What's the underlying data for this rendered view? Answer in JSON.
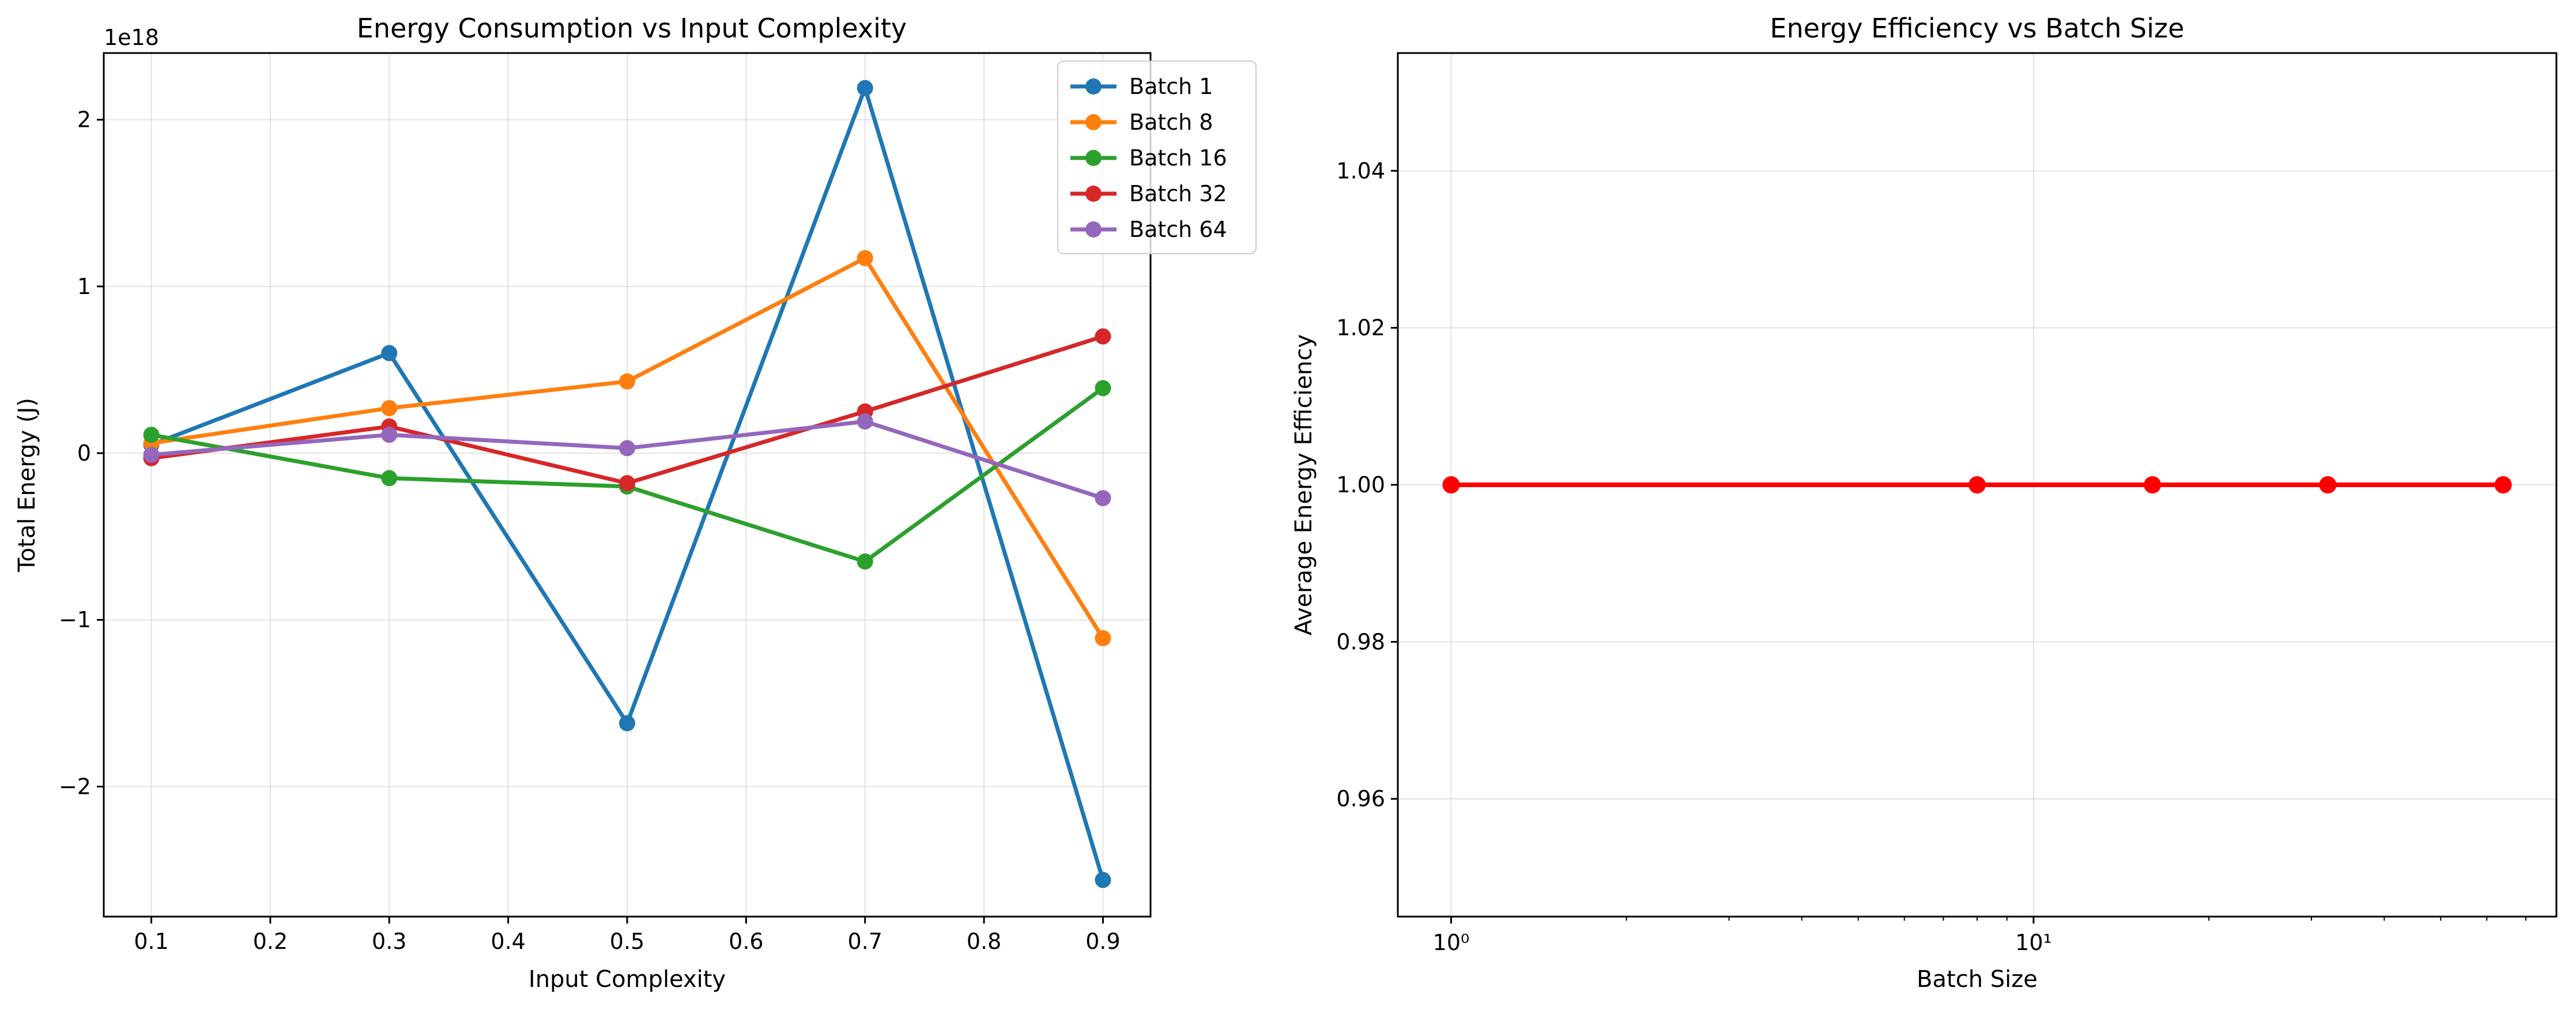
{
  "chart_data": [
    {
      "type": "line",
      "title": "Energy Consumption vs Input Complexity",
      "xlabel": "Input Complexity",
      "ylabel": "Total Energy (J)",
      "y_offset_label": "1e18",
      "y_scale_exponent": 18,
      "x": [
        0.1,
        0.3,
        0.5,
        0.7,
        0.9
      ],
      "xlim": [
        0.06,
        0.94
      ],
      "ylim": [
        -2.78,
        2.4
      ],
      "x_ticks": [
        0.1,
        0.2,
        0.3,
        0.4,
        0.5,
        0.6,
        0.7,
        0.8,
        0.9
      ],
      "y_ticks": [
        -2,
        -1,
        0,
        1,
        2
      ],
      "grid": true,
      "legend_position": "top-right",
      "series": [
        {
          "name": "Batch 1",
          "color": "#1f77b4",
          "values": [
            0.05,
            0.6,
            -1.62,
            2.19,
            -2.56
          ]
        },
        {
          "name": "Batch 8",
          "color": "#ff7f0e",
          "values": [
            0.06,
            0.27,
            0.43,
            1.17,
            -1.11
          ]
        },
        {
          "name": "Batch 16",
          "color": "#2ca02c",
          "values": [
            0.11,
            -0.15,
            -0.2,
            -0.65,
            0.39
          ]
        },
        {
          "name": "Batch 32",
          "color": "#d62728",
          "values": [
            -0.03,
            0.16,
            -0.18,
            0.25,
            0.7
          ]
        },
        {
          "name": "Batch 64",
          "color": "#9467bd",
          "values": [
            -0.01,
            0.11,
            0.03,
            0.19,
            -0.27
          ]
        }
      ]
    },
    {
      "type": "line",
      "title": "Energy Efficiency vs Batch Size",
      "xlabel": "Batch Size",
      "ylabel": "Average Energy Efficiency",
      "x_scale": "log",
      "x": [
        1,
        8,
        16,
        32,
        64
      ],
      "xlim": [
        0.81,
        79
      ],
      "ylim": [
        0.945,
        1.055
      ],
      "x_tick_labels": [
        "10⁰",
        "10¹"
      ],
      "y_ticks": [
        0.96,
        0.98,
        1.0,
        1.02,
        1.04
      ],
      "grid": true,
      "series": [
        {
          "color": "#ff0000",
          "values": [
            1.0,
            1.0,
            1.0,
            1.0,
            1.0
          ]
        }
      ]
    }
  ]
}
